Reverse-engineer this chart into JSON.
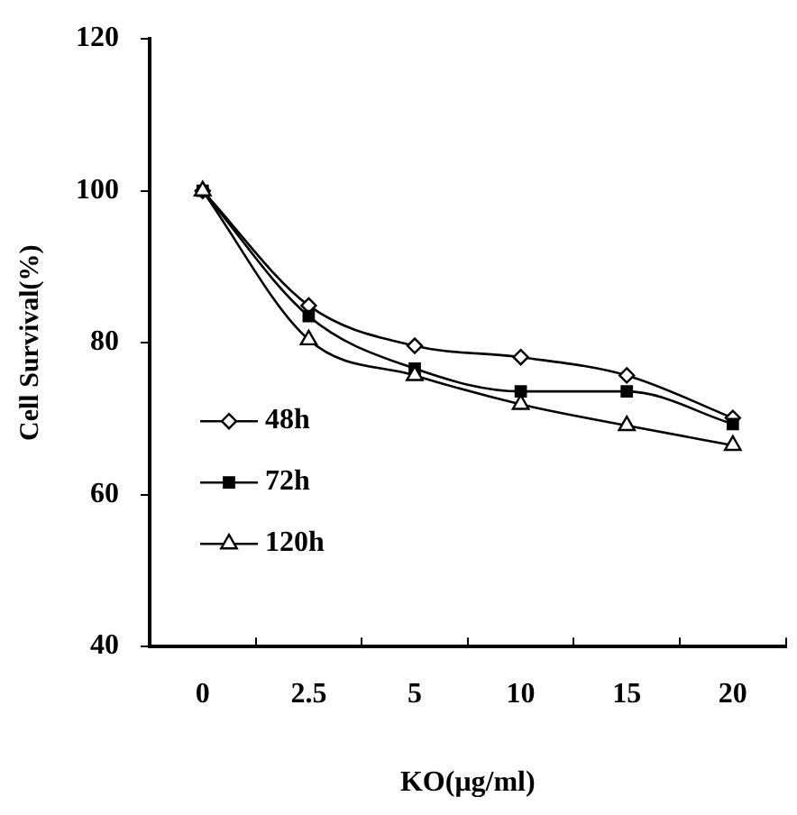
{
  "chart_data": {
    "type": "line",
    "xlabel": "KO(μg/ml)",
    "ylabel": "Cell Survival(%)",
    "categories": [
      "0",
      "2.5",
      "5",
      "10",
      "15",
      "20"
    ],
    "ylim": [
      40,
      120
    ],
    "yticks": [
      40,
      60,
      80,
      100,
      120
    ],
    "grid": false,
    "legend": "bottom left",
    "line_style": "solid",
    "series": [
      {
        "name": "48h",
        "color": "#000000",
        "marker": "diamond",
        "values": [
          100,
          84.9,
          79.6,
          78.1,
          75.7,
          70.1
        ]
      },
      {
        "name": "72h",
        "color": "#000000",
        "marker": "square",
        "values": [
          100,
          83.5,
          76.6,
          73.6,
          73.6,
          69.3
        ]
      },
      {
        "name": "120h",
        "color": "#000000",
        "marker": "triangle",
        "values": [
          100,
          80.4,
          75.7,
          71.9,
          69.1,
          66.5
        ]
      }
    ]
  }
}
